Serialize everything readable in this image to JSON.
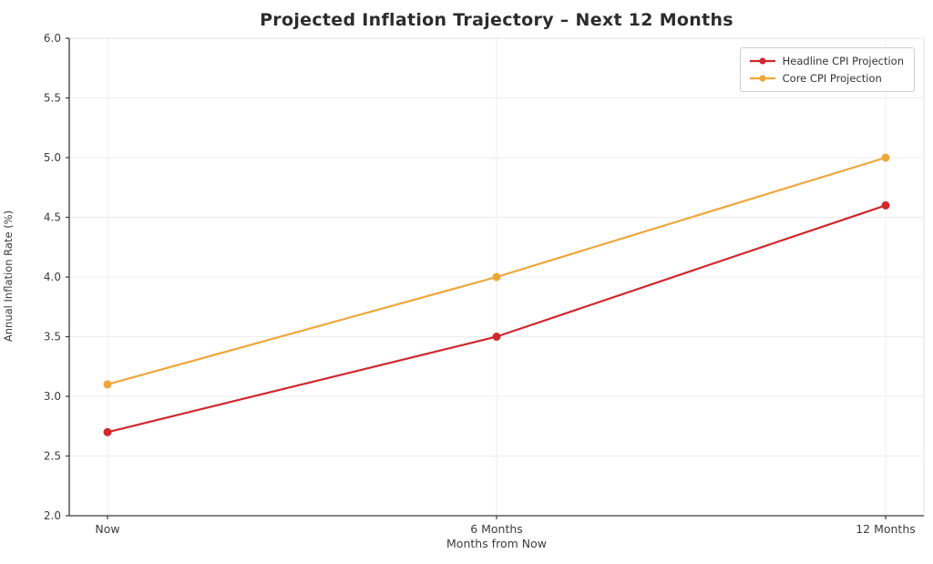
{
  "chart_data": {
    "type": "line",
    "title": "Projected Inflation Trajectory – Next 12 Months",
    "xlabel": "Months from Now",
    "ylabel": "Annual Inflation Rate (%)",
    "categories": [
      "Now",
      "6 Months",
      "12 Months"
    ],
    "series": [
      {
        "name": "Headline CPI Projection",
        "values": [
          2.7,
          3.5,
          4.6
        ],
        "color": "#d0282e"
      },
      {
        "name": "Core CPI Projection",
        "values": [
          3.1,
          4.0,
          5.0
        ],
        "color": "#eea73b"
      }
    ],
    "ylim": [
      2.0,
      6.0
    ],
    "ytick_step": 0.5,
    "ytick_labels": [
      "2.0",
      "2.5",
      "3.0",
      "3.5",
      "4.0",
      "4.5",
      "5.0",
      "5.5",
      "6.0"
    ],
    "grid": true,
    "legend_position": "upper right"
  },
  "colors": {
    "grid": "#ececec",
    "spine_dark": "#3a3a3a",
    "spine_light": "#e3e3e3",
    "tick_text": "#3c3c3c"
  }
}
